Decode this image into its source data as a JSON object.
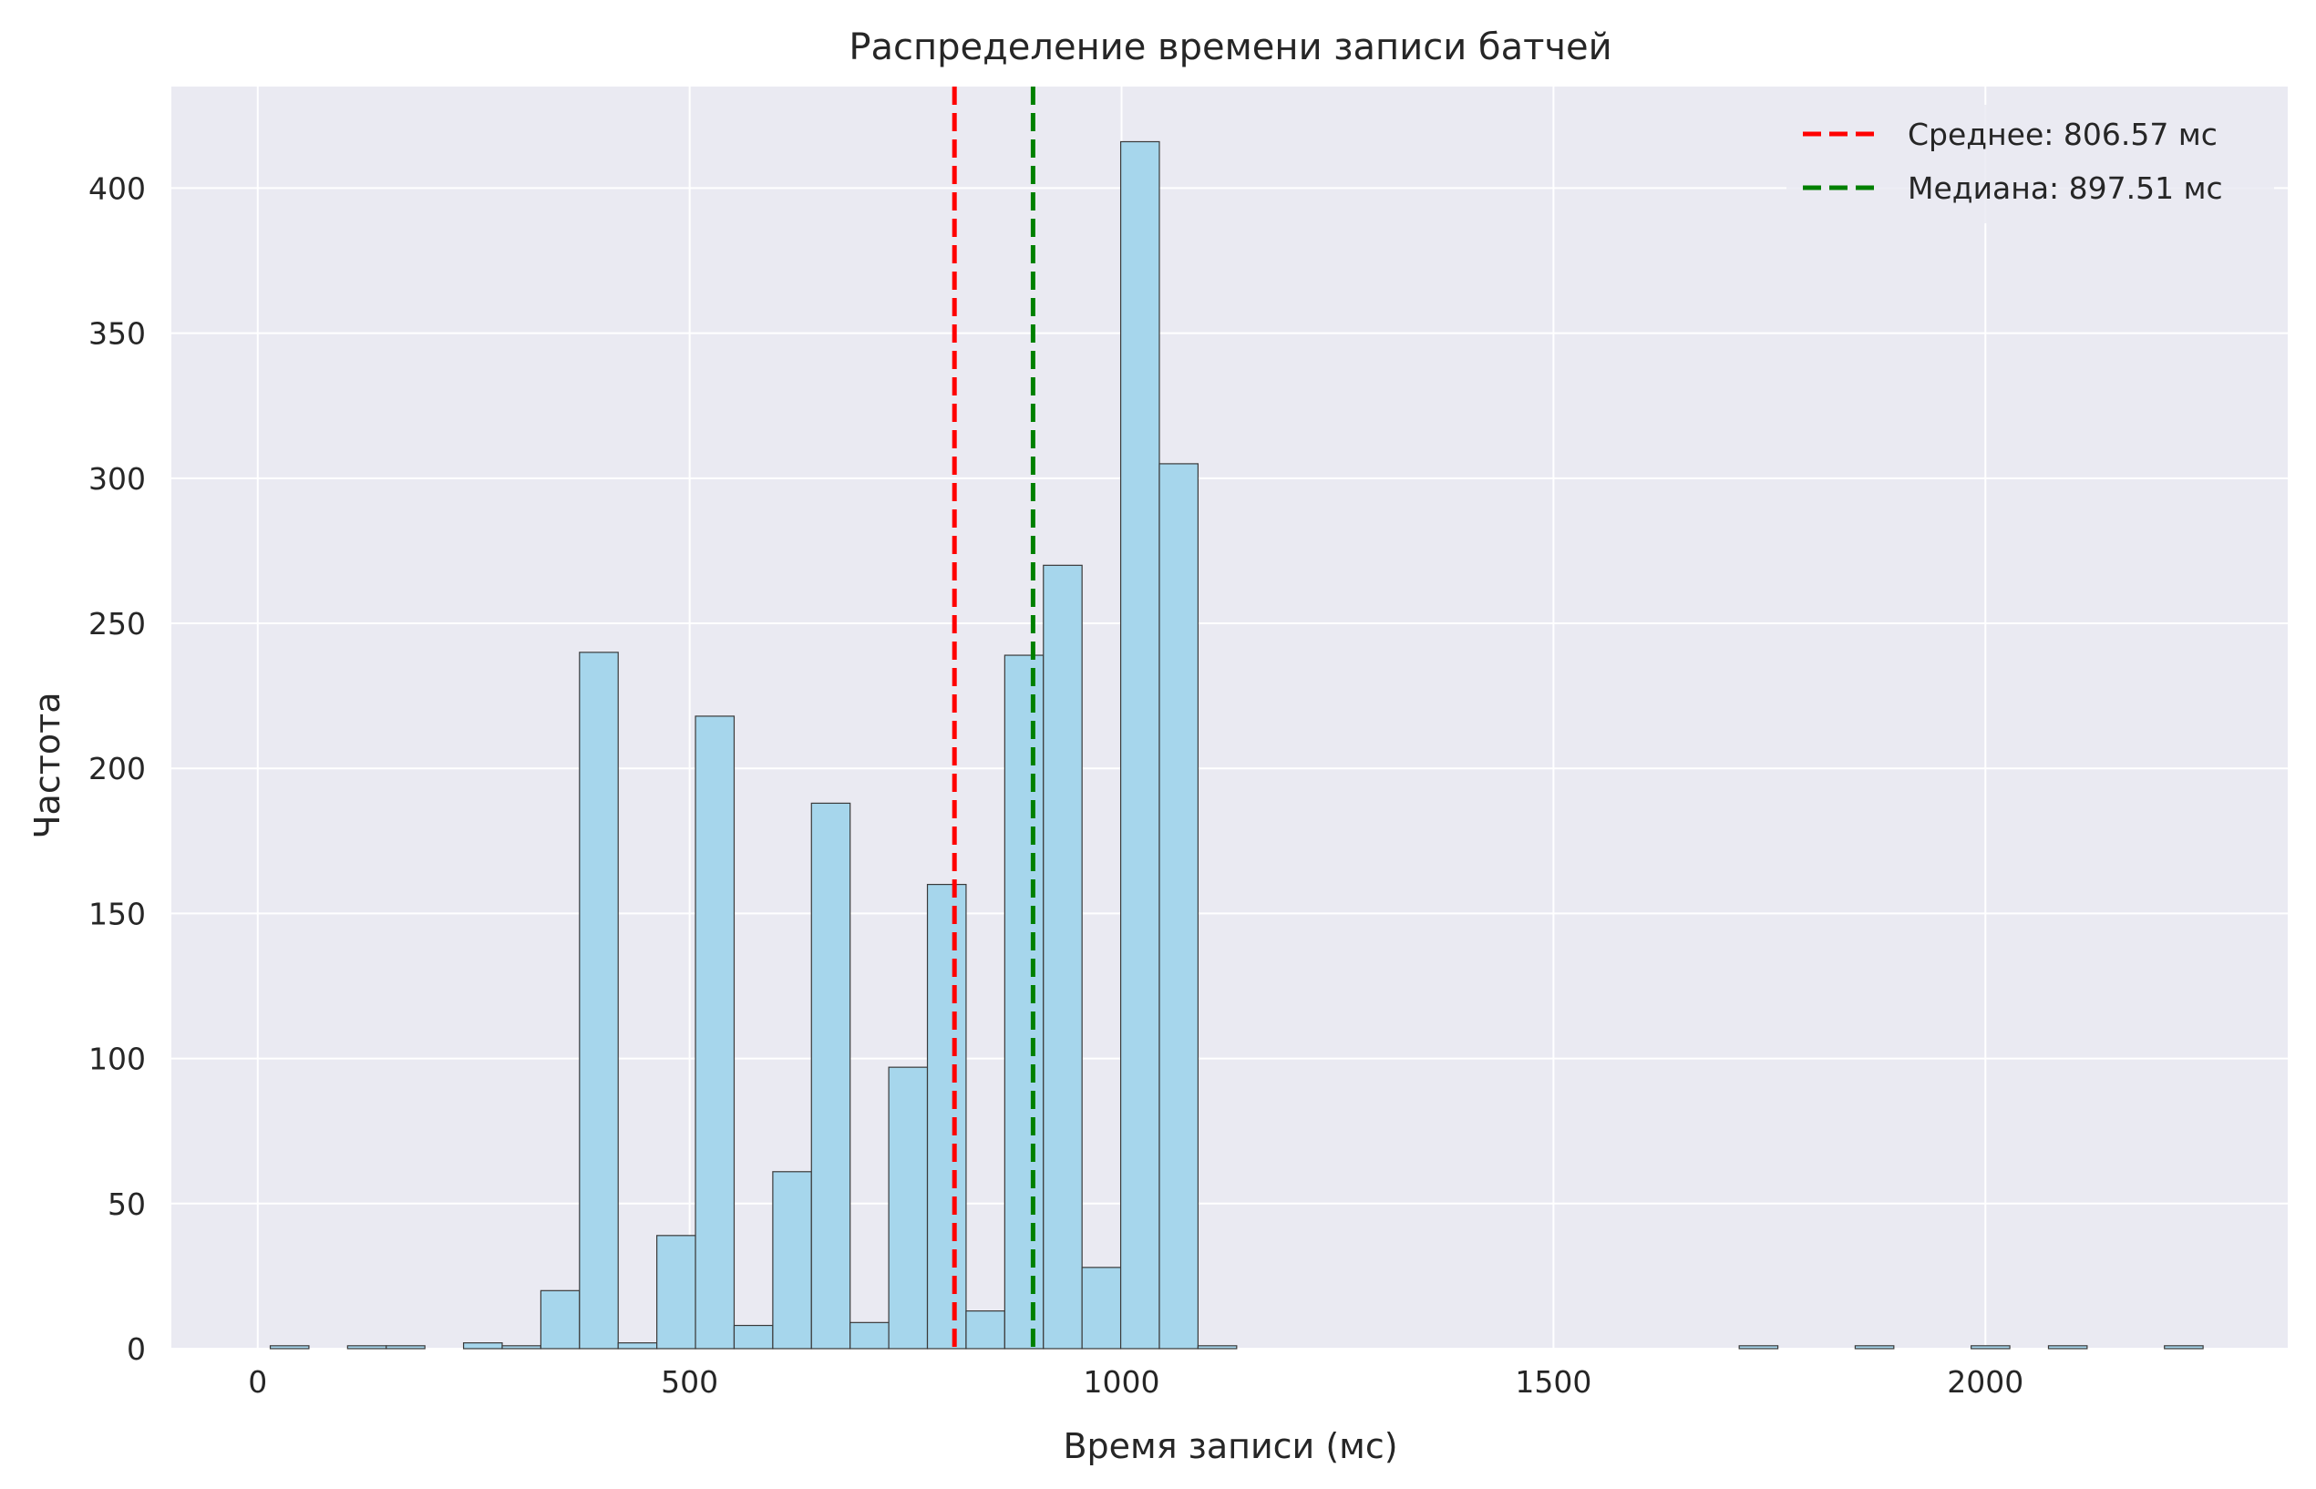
{
  "chart_data": {
    "type": "bar",
    "title": "Распределение времени записи батчей",
    "xlabel": "Время записи (мс)",
    "ylabel": "Частота",
    "xlim": [
      -100,
      2350
    ],
    "ylim": [
      0,
      435
    ],
    "x_ticks": [
      0,
      500,
      1000,
      1500,
      2000
    ],
    "y_ticks": [
      0,
      50,
      100,
      150,
      200,
      250,
      300,
      350,
      400
    ],
    "grid": true,
    "legend_position": "top-right",
    "bins": {
      "start": 14.5,
      "width": 44.75,
      "counts": [
        1,
        0,
        1,
        1,
        0,
        2,
        1,
        20,
        240,
        2,
        39,
        218,
        8,
        61,
        188,
        9,
        97,
        160,
        13,
        239,
        270,
        28,
        416,
        305,
        1,
        0,
        0,
        0,
        0,
        0,
        0,
        0,
        0,
        0,
        0,
        0,
        0,
        0,
        1,
        0,
        0,
        1,
        0,
        0,
        1,
        0,
        1,
        0,
        0,
        1
      ]
    },
    "lines": [
      {
        "name": "Среднее: 806.57 мс",
        "x": 806.57,
        "color": "#ff0000",
        "style": "dashed"
      },
      {
        "name": "Медиана: 897.51 мс",
        "x": 897.51,
        "color": "#008000",
        "style": "dashed"
      }
    ],
    "colors": {
      "bar_fill": "#a6d6ec",
      "bar_edge": "#3a3a3a",
      "plot_background": "#eaeaf2",
      "grid": "#ffffff",
      "text": "#262626"
    }
  }
}
